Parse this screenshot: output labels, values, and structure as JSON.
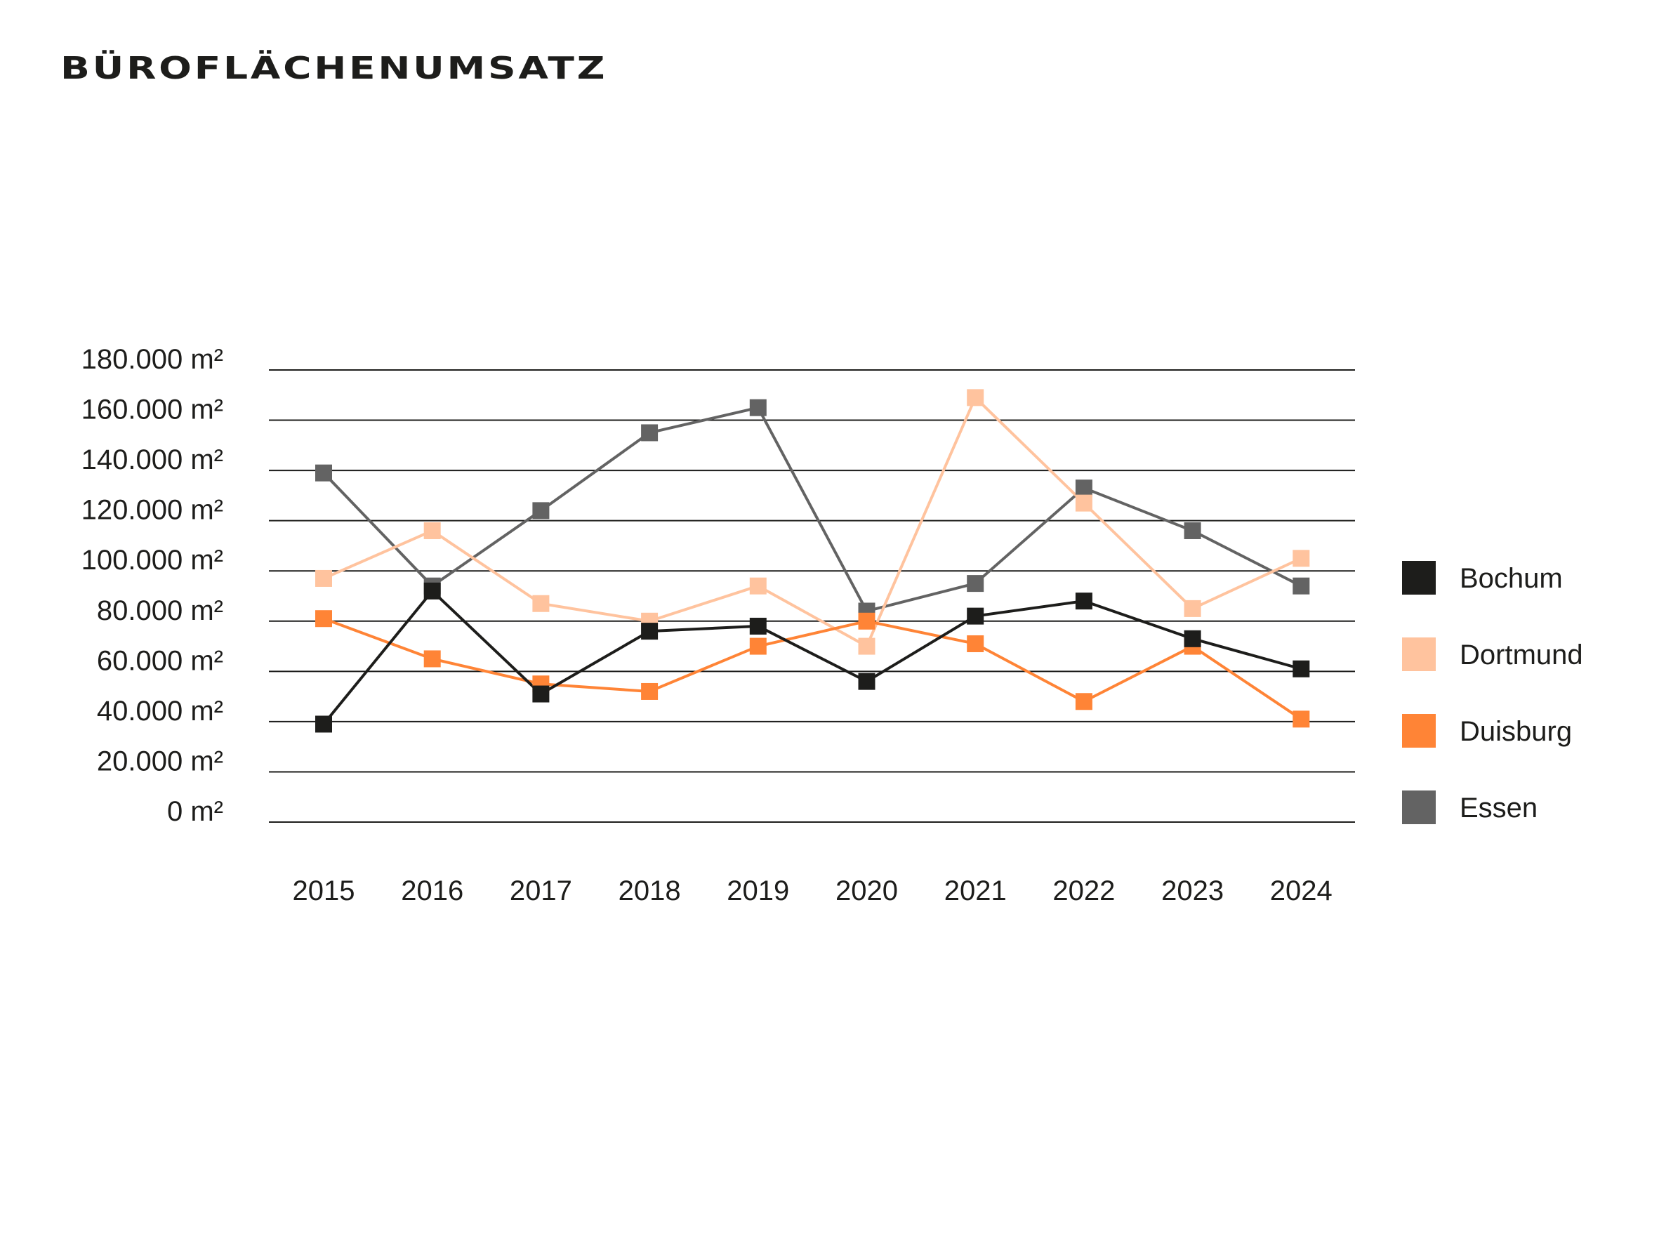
{
  "chart_data": {
    "type": "line",
    "title": "BÜROFLÄCHENUMSATZ",
    "xlabel": "",
    "ylabel": "",
    "ylim": [
      0,
      180000
    ],
    "y_ticks": [
      "0 m²",
      "20.000 m²",
      "40.000 m²",
      "60.000 m²",
      "80.000 m²",
      "100.000 m²",
      "120.000 m²",
      "140.000 m²",
      "160.000 m²",
      "180.000 m²"
    ],
    "y_tick_values": [
      0,
      20000,
      40000,
      60000,
      80000,
      100000,
      120000,
      140000,
      160000,
      180000
    ],
    "x": [
      "2015",
      "2016",
      "2017",
      "2018",
      "2019",
      "2020",
      "2021",
      "2022",
      "2023",
      "2024"
    ],
    "grid": true,
    "legend_position": "right",
    "series": [
      {
        "name": "Bochum",
        "color": "#1d1d1b",
        "values": [
          39000,
          92000,
          51000,
          76000,
          78000,
          56000,
          82000,
          88000,
          73000,
          61000
        ]
      },
      {
        "name": "Dortmund",
        "color": "#ffc39e",
        "values": [
          97000,
          116000,
          87000,
          80000,
          94000,
          70000,
          169000,
          127000,
          85000,
          105000
        ]
      },
      {
        "name": "Duisburg",
        "color": "#ff8436",
        "values": [
          81000,
          65000,
          55000,
          52000,
          70000,
          80000,
          71000,
          48000,
          70000,
          41000
        ]
      },
      {
        "name": "Essen",
        "color": "#636363",
        "values": [
          139000,
          94000,
          124000,
          155000,
          165000,
          84000,
          95000,
          133000,
          116000,
          94000
        ]
      }
    ]
  }
}
